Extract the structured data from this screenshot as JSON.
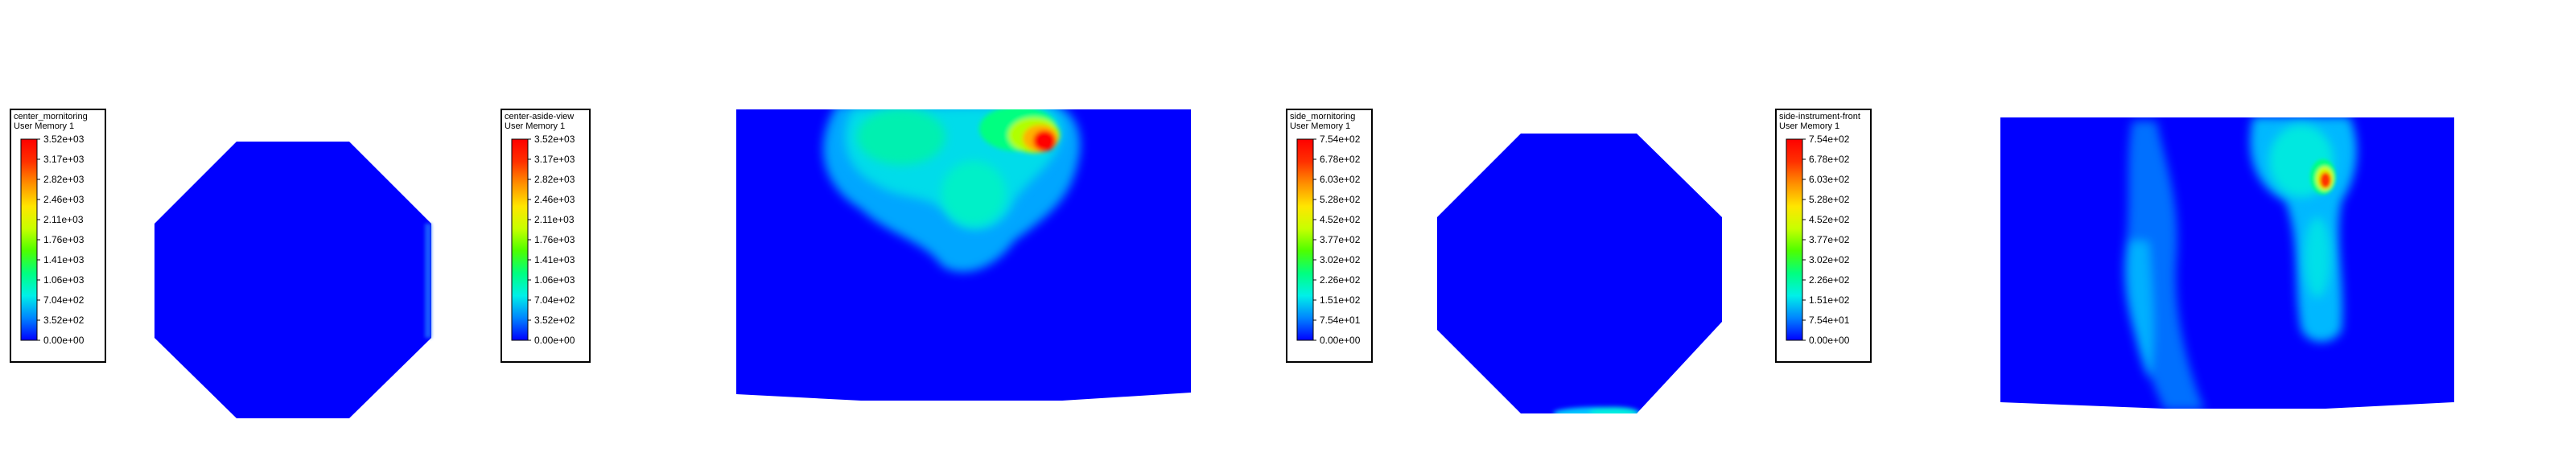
{
  "colors": {
    "background": "#ffffff",
    "domain": "#0000ff"
  },
  "colormap": [
    "#0000ff",
    "#0085ff",
    "#00f0e8",
    "#00ff80",
    "#4dff00",
    "#c8ff00",
    "#ffe600",
    "#ff9000",
    "#ff3000",
    "#ff0000"
  ],
  "legends": [
    {
      "title": "center_mornitoring",
      "subtitle": "User Memory 1",
      "ticks": [
        "3.52e+03",
        "3.17e+03",
        "2.82e+03",
        "2.46e+03",
        "2.11e+03",
        "1.76e+03",
        "1.41e+03",
        "1.06e+03",
        "7.04e+02",
        "3.52e+02",
        "0.00e+00"
      ]
    },
    {
      "title": "center-aside-view",
      "subtitle": "User Memory 1",
      "ticks": [
        "3.52e+03",
        "3.17e+03",
        "2.82e+03",
        "2.46e+03",
        "2.11e+03",
        "1.76e+03",
        "1.41e+03",
        "1.06e+03",
        "7.04e+02",
        "3.52e+02",
        "0.00e+00"
      ]
    },
    {
      "title": "side_mornitoring",
      "subtitle": "User Memory 1",
      "ticks": [
        "7.54e+02",
        "6.78e+02",
        "6.03e+02",
        "5.28e+02",
        "4.52e+02",
        "3.77e+02",
        "3.02e+02",
        "2.26e+02",
        "1.51e+02",
        "7.54e+01",
        "0.00e+00"
      ]
    },
    {
      "title": "side-instrument-front",
      "subtitle": "User Memory 1",
      "ticks": [
        "7.54e+02",
        "6.78e+02",
        "6.03e+02",
        "5.28e+02",
        "4.52e+02",
        "3.77e+02",
        "3.02e+02",
        "2.26e+02",
        "1.51e+02",
        "7.54e+01",
        "0.00e+00"
      ]
    }
  ],
  "chart_data": [
    {
      "type": "heatmap",
      "title": "center_mornitoring",
      "subtitle": "User Memory 1",
      "view": "octagon cross-section",
      "range": [
        0,
        3520
      ],
      "tick_values": [
        3520,
        3170,
        2820,
        2460,
        2110,
        1760,
        1410,
        1060,
        704,
        352,
        0
      ],
      "field": "near zero everywhere, faint low values along right edge"
    },
    {
      "type": "heatmap",
      "title": "center-aside-view",
      "subtitle": "User Memory 1",
      "view": "side view",
      "range": [
        0,
        3520
      ],
      "tick_values": [
        3520,
        3170,
        2820,
        2460,
        2110,
        1760,
        1410,
        1060,
        704,
        352,
        0
      ],
      "field": "plume in upper-center, peak about 3520 near top"
    },
    {
      "type": "heatmap",
      "title": "side_mornitoring",
      "subtitle": "User Memory 1",
      "view": "octagon cross-section",
      "range": [
        0,
        754
      ],
      "tick_values": [
        754,
        678,
        603,
        528,
        452,
        377,
        302,
        226,
        151,
        75.4,
        0
      ],
      "field": "near zero everywhere, low values along bottom edge"
    },
    {
      "type": "heatmap",
      "title": "side-instrument-front",
      "subtitle": "User Memory 1",
      "view": "front view",
      "range": [
        0,
        754
      ],
      "tick_values": [
        754,
        678,
        603,
        528,
        452,
        377,
        302,
        226,
        151,
        75.4,
        0
      ],
      "field": "two vertical low-value bands, peak about 754 upper-right"
    }
  ]
}
